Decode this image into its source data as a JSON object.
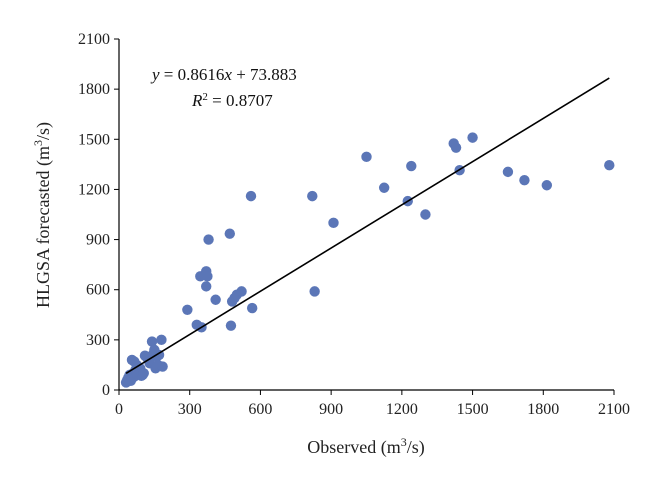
{
  "chart_data": {
    "type": "scatter",
    "xlabel": {
      "pre": "Observed (m",
      "sup": "3",
      "post": "/s)"
    },
    "ylabel": {
      "pre": "HLGSA forecasted (m",
      "sup": "3",
      "post": "/s)"
    },
    "xlim": [
      0,
      2100
    ],
    "ylim": [
      0,
      2100
    ],
    "x_ticks": [
      0,
      300,
      600,
      900,
      1200,
      1500,
      1800,
      2100
    ],
    "y_ticks": [
      0,
      300,
      600,
      900,
      1200,
      1500,
      1800,
      2100
    ],
    "x_tick_labels": [
      "0",
      "300",
      "600",
      "900",
      "1200",
      "1500",
      "1800",
      "2100"
    ],
    "y_tick_labels": [
      "0",
      "300",
      "600",
      "900",
      "1200",
      "1500",
      "1800",
      "2100"
    ],
    "grid": false,
    "marker_color": "#5b76b7",
    "trendline": {
      "slope": 0.8616,
      "intercept": 73.883,
      "x_range": [
        30,
        2080
      ],
      "equation_label": {
        "y": "y",
        "eq": " = 0.8616",
        "x": "x",
        "rest": " + 73.883"
      },
      "r2_label": {
        "r": "R",
        "sup": "2",
        "rest": " = 0.8707"
      }
    },
    "points": [
      [
        30,
        45
      ],
      [
        35,
        60
      ],
      [
        40,
        75
      ],
      [
        45,
        90
      ],
      [
        50,
        55
      ],
      [
        55,
        70
      ],
      [
        60,
        100
      ],
      [
        65,
        80
      ],
      [
        70,
        120
      ],
      [
        75,
        95
      ],
      [
        80,
        140
      ],
      [
        85,
        110
      ],
      [
        90,
        130
      ],
      [
        95,
        85
      ],
      [
        100,
        90
      ],
      [
        105,
        100
      ],
      [
        55,
        180
      ],
      [
        65,
        170
      ],
      [
        75,
        150
      ],
      [
        110,
        205
      ],
      [
        120,
        190
      ],
      [
        130,
        160
      ],
      [
        140,
        290
      ],
      [
        145,
        215
      ],
      [
        150,
        240
      ],
      [
        155,
        130
      ],
      [
        160,
        200
      ],
      [
        165,
        150
      ],
      [
        170,
        210
      ],
      [
        180,
        300
      ],
      [
        185,
        140
      ],
      [
        290,
        480
      ],
      [
        330,
        390
      ],
      [
        350,
        375
      ],
      [
        345,
        680
      ],
      [
        370,
        620
      ],
      [
        370,
        710
      ],
      [
        375,
        680
      ],
      [
        380,
        900
      ],
      [
        410,
        540
      ],
      [
        470,
        935
      ],
      [
        475,
        385
      ],
      [
        480,
        530
      ],
      [
        490,
        550
      ],
      [
        500,
        570
      ],
      [
        520,
        590
      ],
      [
        560,
        1160
      ],
      [
        565,
        490
      ],
      [
        820,
        1160
      ],
      [
        830,
        590
      ],
      [
        910,
        1000
      ],
      [
        1050,
        1395
      ],
      [
        1125,
        1210
      ],
      [
        1225,
        1130
      ],
      [
        1240,
        1340
      ],
      [
        1300,
        1050
      ],
      [
        1420,
        1475
      ],
      [
        1430,
        1450
      ],
      [
        1445,
        1315
      ],
      [
        1500,
        1510
      ],
      [
        1650,
        1305
      ],
      [
        1720,
        1255
      ],
      [
        1815,
        1225
      ],
      [
        2080,
        1345
      ]
    ]
  }
}
